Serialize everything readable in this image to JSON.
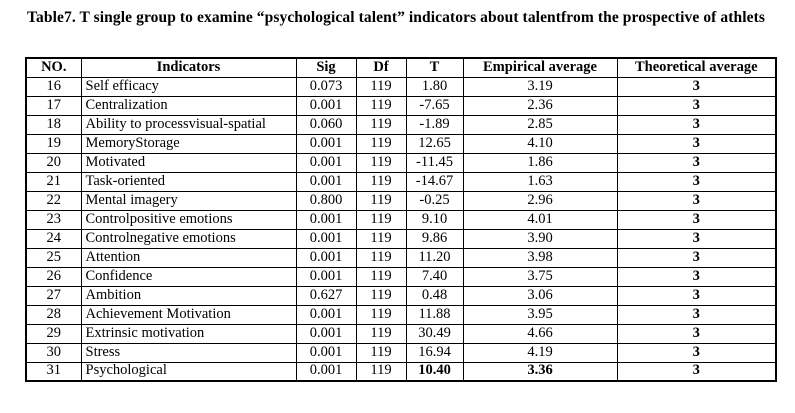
{
  "page": {
    "title": "Table7. T single group to examine “psychological talent” indicators about talentfrom the prospective of athlets"
  },
  "table": {
    "headers": [
      "NO.",
      "Indicators",
      "Sig",
      "Df",
      "T",
      "Empirical average",
      "Theoretical average"
    ],
    "rows": [
      {
        "no": "16",
        "indicator": "Self efficacy",
        "sig": "0.073",
        "df": "119",
        "t": "1.80",
        "empirical": "3.19",
        "theoretical": "3",
        "bold_values": false
      },
      {
        "no": "17",
        "indicator": "Centralization",
        "sig": "0.001",
        "df": "119",
        "t": "-7.65",
        "empirical": "2.36",
        "theoretical": "3",
        "bold_values": false
      },
      {
        "no": "18",
        "indicator": "Ability to processvisual-spatial",
        "sig": "0.060",
        "df": "119",
        "t": "-1.89",
        "empirical": "2.85",
        "theoretical": "3",
        "bold_values": false
      },
      {
        "no": "19",
        "indicator": "MemoryStorage",
        "sig": "0.001",
        "df": "119",
        "t": "12.65",
        "empirical": "4.10",
        "theoretical": "3",
        "bold_values": false
      },
      {
        "no": "20",
        "indicator": "Motivated",
        "sig": "0.001",
        "df": "119",
        "t": "-11.45",
        "empirical": "1.86",
        "theoretical": "3",
        "bold_values": false
      },
      {
        "no": "21",
        "indicator": "Task-oriented",
        "sig": "0.001",
        "df": "119",
        "t": "-14.67",
        "empirical": "1.63",
        "theoretical": "3",
        "bold_values": false
      },
      {
        "no": "22",
        "indicator": "Mental imagery",
        "sig": "0.800",
        "df": "119",
        "t": "-0.25",
        "empirical": "2.96",
        "theoretical": "3",
        "bold_values": false
      },
      {
        "no": "23",
        "indicator": "Controlpositive emotions",
        "sig": "0.001",
        "df": "119",
        "t": "9.10",
        "empirical": "4.01",
        "theoretical": "3",
        "bold_values": false
      },
      {
        "no": "24",
        "indicator": "Controlnegative emotions",
        "sig": "0.001",
        "df": "119",
        "t": "9.86",
        "empirical": "3.90",
        "theoretical": "3",
        "bold_values": false
      },
      {
        "no": "25",
        "indicator": "Attention",
        "sig": "0.001",
        "df": "119",
        "t": "11.20",
        "empirical": "3.98",
        "theoretical": "3",
        "bold_values": false
      },
      {
        "no": "26",
        "indicator": "Confidence",
        "sig": "0.001",
        "df": "119",
        "t": "7.40",
        "empirical": "3.75",
        "theoretical": "3",
        "bold_values": false
      },
      {
        "no": "27",
        "indicator": "Ambition",
        "sig": "0.627",
        "df": "119",
        "t": "0.48",
        "empirical": "3.06",
        "theoretical": "3",
        "bold_values": false
      },
      {
        "no": "28",
        "indicator": "Achievement Motivation",
        "sig": "0.001",
        "df": "119",
        "t": "11.88",
        "empirical": "3.95",
        "theoretical": "3",
        "bold_values": false
      },
      {
        "no": "29",
        "indicator": "Extrinsic motivation",
        "sig": "0.001",
        "df": "119",
        "t": "30.49",
        "empirical": "4.66",
        "theoretical": "3",
        "bold_values": false
      },
      {
        "no": "30",
        "indicator": "Stress",
        "sig": "0.001",
        "df": "119",
        "t": "16.94",
        "empirical": "4.19",
        "theoretical": "3",
        "bold_values": false
      },
      {
        "no": "31",
        "indicator": "Psychological",
        "sig": "0.001",
        "df": "119",
        "t": "10.40",
        "empirical": "3.36",
        "theoretical": "3",
        "bold_values": true
      }
    ]
  }
}
